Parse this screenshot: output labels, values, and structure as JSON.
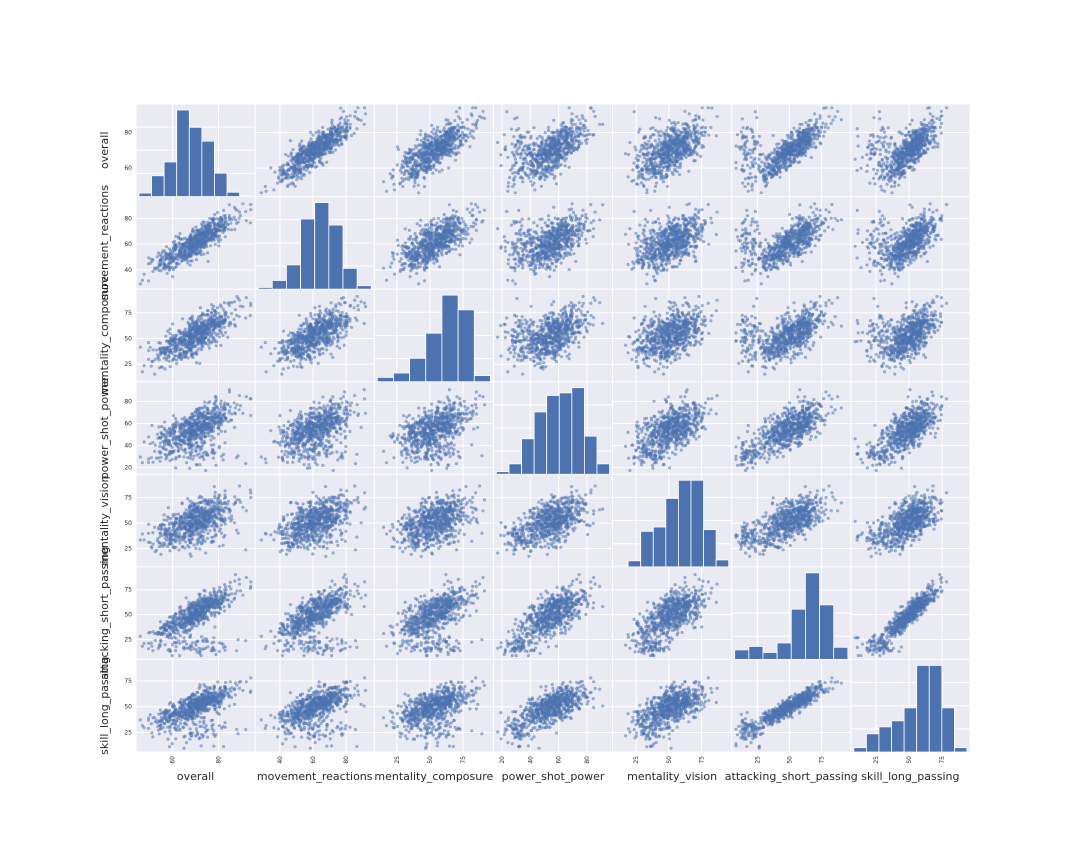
{
  "chart_data": {
    "type": "scatter",
    "kind": "scatter-matrix",
    "variables": [
      {
        "name": "overall",
        "range": [
          44,
          96
        ],
        "ticks": [
          60,
          80
        ]
      },
      {
        "name": "movement_reactions",
        "range": [
          25,
          97
        ],
        "ticks": [
          40,
          60,
          80
        ]
      },
      {
        "name": "mentality_composure",
        "range": [
          8,
          98
        ],
        "ticks": [
          25,
          50,
          75
        ]
      },
      {
        "name": "power_shot_power",
        "range": [
          14,
          98
        ],
        "ticks": [
          20,
          40,
          60,
          80
        ]
      },
      {
        "name": "mentality_vision",
        "range": [
          7,
          98
        ],
        "ticks": [
          25,
          50,
          75
        ]
      },
      {
        "name": "attacking_short_passing",
        "range": [
          5,
          98
        ],
        "ticks": [
          25,
          50,
          75
        ]
      },
      {
        "name": "skill_long_passing",
        "range": [
          6,
          96
        ],
        "ticks": [
          25,
          50,
          75
        ]
      }
    ],
    "histograms": [
      [
        0.04,
        0.24,
        0.4,
        1.0,
        0.8,
        0.64,
        0.27,
        0.05,
        0.01
      ],
      [
        0.02,
        0.1,
        0.28,
        0.81,
        1.0,
        0.74,
        0.24,
        0.04
      ],
      [
        0.05,
        0.1,
        0.27,
        0.56,
        1.0,
        0.83,
        0.07
      ],
      [
        0.03,
        0.12,
        0.41,
        0.72,
        0.91,
        0.94,
        1.0,
        0.44,
        0.12
      ],
      [
        0.01,
        0.07,
        0.41,
        0.46,
        0.79,
        1.0,
        1.0,
        0.43,
        0.08
      ],
      [
        0.11,
        0.15,
        0.08,
        0.19,
        0.58,
        1.0,
        0.63,
        0.14
      ],
      [
        0.05,
        0.21,
        0.29,
        0.36,
        0.51,
        1.0,
        1.0,
        0.51,
        0.05
      ]
    ],
    "grid": true,
    "point_color": "#4c72b0",
    "background_color": "#eaeaf2"
  }
}
